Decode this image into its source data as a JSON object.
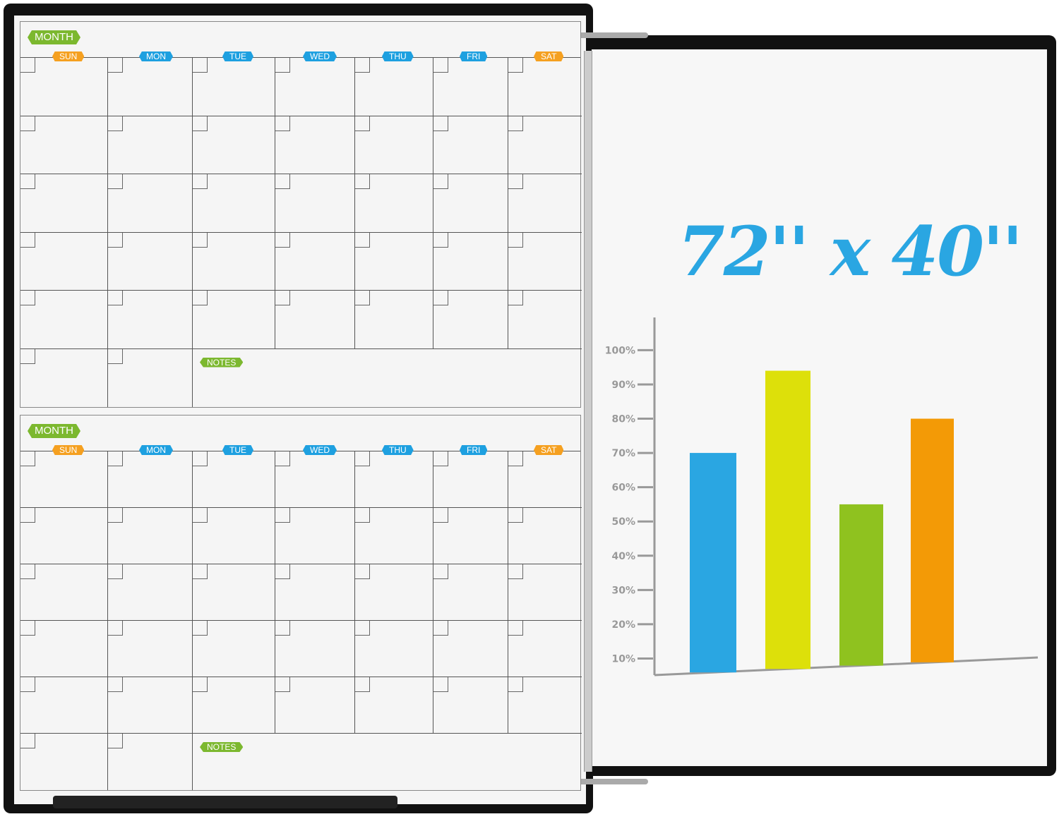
{
  "board": {
    "size_label": "72'' x 40''"
  },
  "calendars": [
    {
      "month_label": "MONTH",
      "days": [
        "SUN",
        "MON",
        "TUE",
        "WED",
        "THU",
        "FRI",
        "SAT"
      ],
      "notes_label": "NOTES"
    },
    {
      "month_label": "MONTH",
      "days": [
        "SUN",
        "MON",
        "TUE",
        "WED",
        "THU",
        "FRI",
        "SAT"
      ],
      "notes_label": "NOTES"
    }
  ],
  "colors": {
    "accent_blue": "#2aa6e2",
    "month_green": "#7cb82f",
    "weekend_orange": "#f5a020",
    "weekday_blue": "#1ea0e0",
    "frame": "#111111"
  },
  "chart_data": {
    "type": "bar",
    "categories": [
      "",
      "",
      "",
      ""
    ],
    "values": [
      70,
      94,
      55,
      80
    ],
    "colors": [
      "#2aa6e2",
      "#dde00a",
      "#8fc21f",
      "#f39a06"
    ],
    "yticks": [
      "10%",
      "20%",
      "30%",
      "40%",
      "50%",
      "60%",
      "70%",
      "80%",
      "90%",
      "100%"
    ],
    "ylim": [
      0,
      100
    ],
    "grid": false
  }
}
